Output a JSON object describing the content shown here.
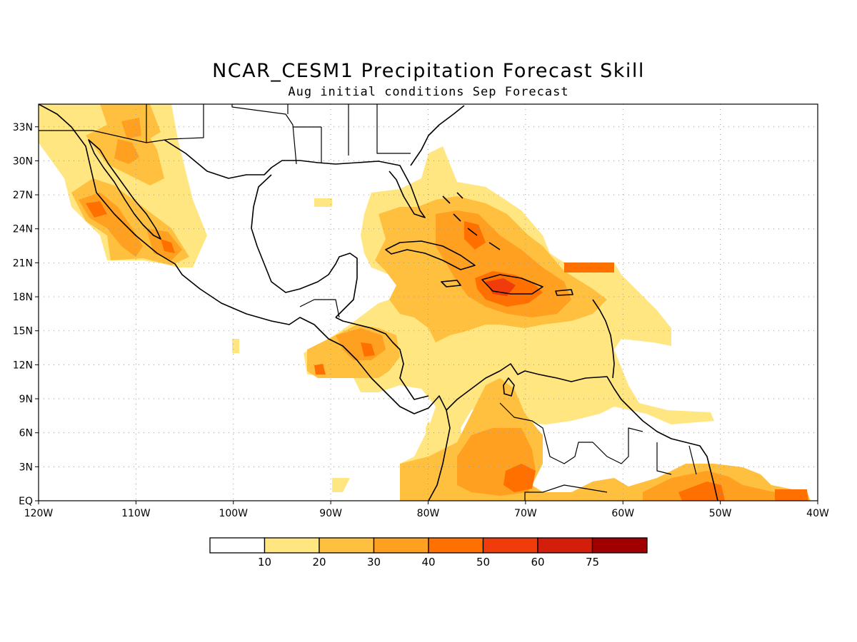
{
  "title": "NCAR_CESM1 Precipitation Forecast Skill",
  "subtitle": "Aug initial conditions  Sep Forecast",
  "map": {
    "lat_range": [
      0,
      35
    ],
    "lon_range": [
      -120,
      -40
    ],
    "lat_ticks": [
      "EQ",
      "3N",
      "6N",
      "9N",
      "12N",
      "15N",
      "18N",
      "21N",
      "24N",
      "27N",
      "30N",
      "33N"
    ],
    "lon_ticks": [
      "120W",
      "110W",
      "100W",
      "90W",
      "80W",
      "70W",
      "60W",
      "50W",
      "40W"
    ],
    "grid": "dotted"
  },
  "colorbar": {
    "labels": [
      "10",
      "20",
      "30",
      "40",
      "50",
      "60",
      "75"
    ],
    "colors": [
      "#ffffff",
      "#ffe680",
      "#ffbf3f",
      "#ffa020",
      "#ff7000",
      "#f03c0a",
      "#d21e0a",
      "#a00000"
    ]
  },
  "colors": {
    "l1": "#ffe680",
    "l2": "#ffbf3f",
    "l3": "#ffa020",
    "l4": "#ff7000",
    "l5": "#f03c0a"
  }
}
